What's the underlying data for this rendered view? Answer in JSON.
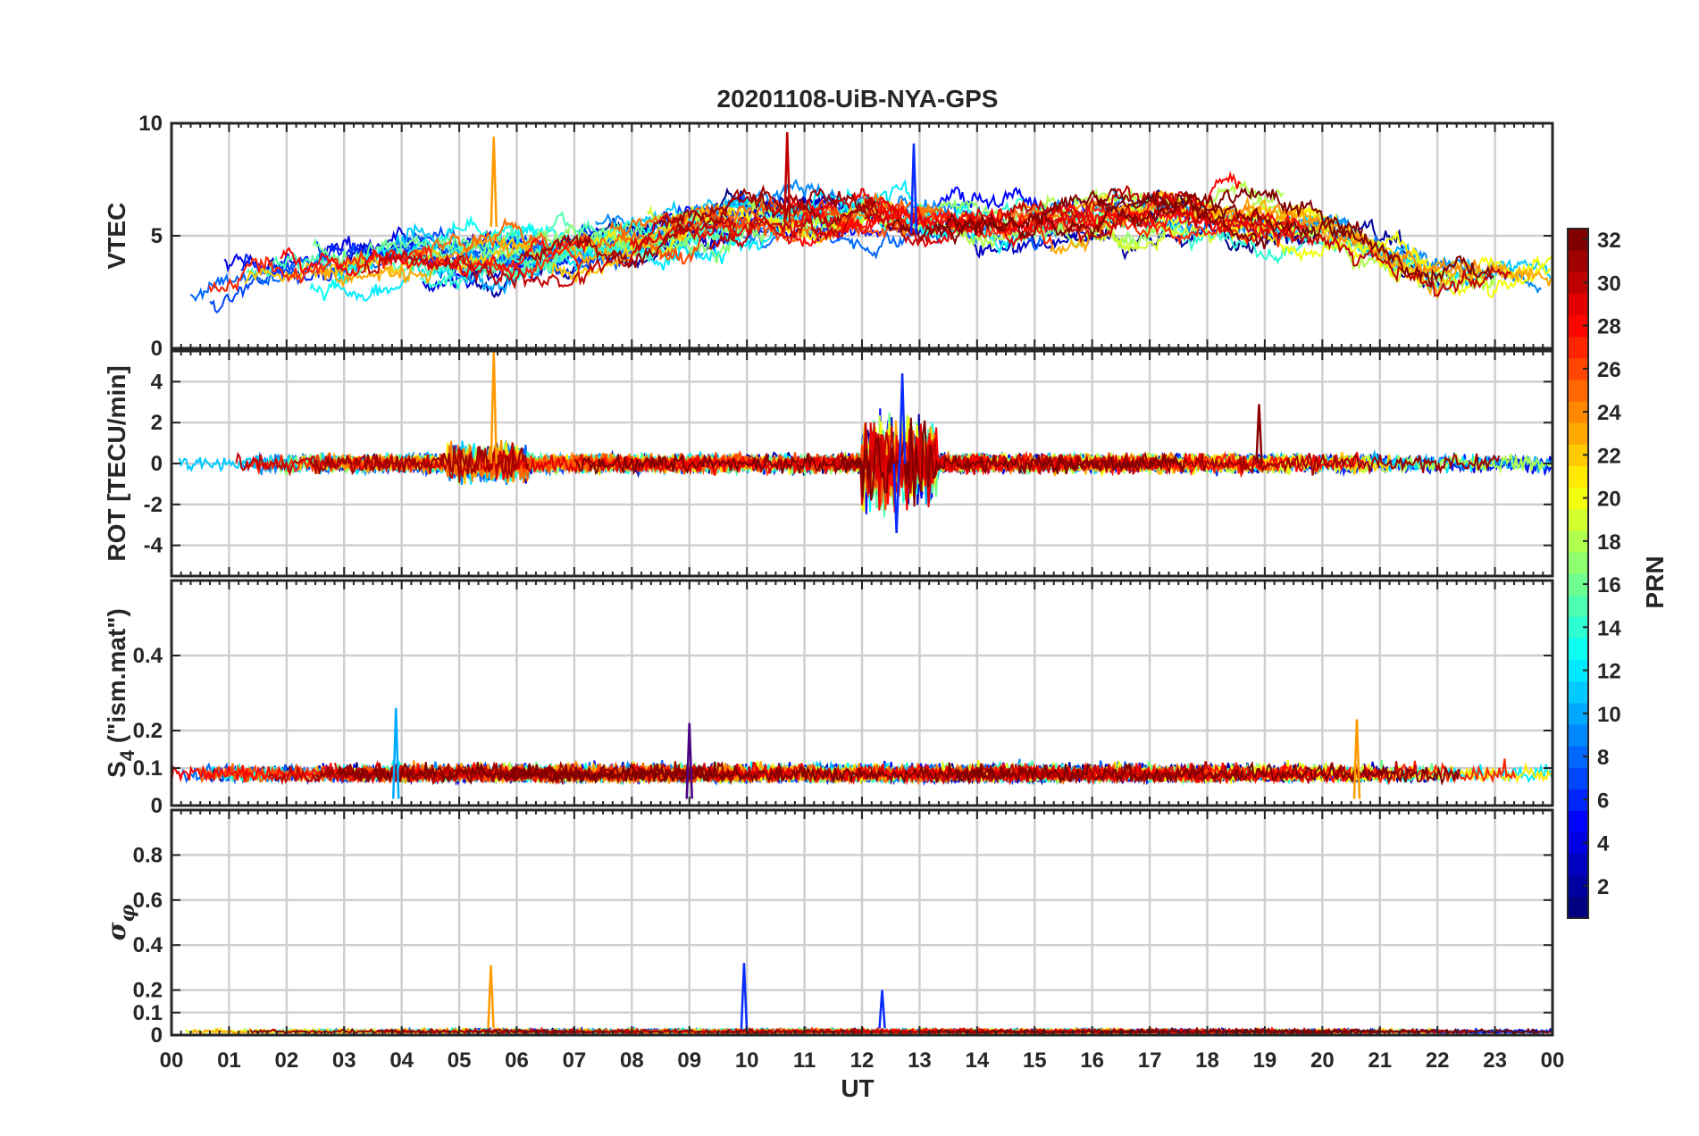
{
  "chart_data": {
    "type": "line",
    "title": "20201108-UiB-NYA-GPS",
    "xlabel": "UT",
    "x_ticks": [
      "00",
      "01",
      "02",
      "03",
      "04",
      "05",
      "06",
      "07",
      "08",
      "09",
      "10",
      "11",
      "12",
      "13",
      "14",
      "15",
      "16",
      "17",
      "18",
      "19",
      "20",
      "21",
      "22",
      "23",
      "00"
    ],
    "xlim": [
      0,
      24
    ],
    "panels": [
      {
        "ylabel": "VTEC",
        "ylim": [
          0,
          10
        ],
        "y_ticks": [
          0,
          5,
          10
        ],
        "y_tick_labels": [
          "0",
          "5",
          "10"
        ],
        "trend": {
          "t": [
            0,
            2,
            4,
            6,
            8,
            10,
            12,
            14,
            16,
            18,
            20,
            22,
            24
          ],
          "v": [
            3,
            3.5,
            4,
            4,
            4.7,
            5.8,
            6,
            5.6,
            5.8,
            6,
            5.4,
            3.2,
            3.2
          ]
        },
        "spikes": [
          {
            "t": 5.6,
            "v": 9.4,
            "color": "#ff9900"
          },
          {
            "t": 10.7,
            "v": 9.6,
            "color": "#c00000"
          },
          {
            "t": 12.9,
            "v": 9.1,
            "color": "#0a2cff"
          }
        ]
      },
      {
        "ylabel": "ROT [TECU/min]",
        "ylim": [
          -5.5,
          5.5
        ],
        "y_ticks": [
          -4,
          -2,
          0,
          2,
          4
        ],
        "y_tick_labels": [
          "-4",
          "-2",
          "0",
          "2",
          "4"
        ],
        "spikes": [
          {
            "t": 5.6,
            "v": 5.5,
            "color": "#ff9900"
          },
          {
            "t": 12.7,
            "v": 4.4,
            "color": "#0a2cff"
          },
          {
            "t": 12.6,
            "v": -3.4,
            "color": "#0a2cff"
          },
          {
            "t": 18.9,
            "v": 2.9,
            "color": "#8b0000"
          }
        ]
      },
      {
        "ylabel_main": "S",
        "ylabel_sub": "4",
        "ylabel_suffix": " (\"ism.mat\")",
        "ylim": [
          0,
          0.6
        ],
        "y_ticks": [
          0,
          0.1,
          0.2,
          0.4
        ],
        "y_tick_labels": [
          "0",
          "0.1",
          "0.2",
          "0.4"
        ],
        "spikes": [
          {
            "t": 3.9,
            "v": 0.26,
            "color": "#00aaff"
          },
          {
            "t": 9.0,
            "v": 0.22,
            "color": "#4a0080"
          },
          {
            "t": 20.6,
            "v": 0.23,
            "color": "#ff9900"
          }
        ]
      },
      {
        "ylabel_main": "σ",
        "ylabel_sub": "φ",
        "ylim": [
          0,
          1
        ],
        "y_ticks": [
          0,
          0.1,
          0.2,
          0.4,
          0.6,
          0.8
        ],
        "y_tick_labels": [
          "0",
          "0.1",
          "0.2",
          "0.4",
          "0.6",
          "0.8"
        ],
        "spikes": [
          {
            "t": 5.55,
            "v": 0.31,
            "color": "#ff9900"
          },
          {
            "t": 9.95,
            "v": 0.32,
            "color": "#0a2cff"
          },
          {
            "t": 12.35,
            "v": 0.2,
            "color": "#0a2cff"
          }
        ]
      }
    ],
    "series_count": 32,
    "colorbar": {
      "label": "PRN",
      "min": 1,
      "max": 32,
      "ticks": [
        2,
        4,
        6,
        8,
        10,
        12,
        14,
        16,
        18,
        20,
        22,
        24,
        26,
        28,
        30,
        32
      ],
      "tick_labels": [
        "2",
        "4",
        "6",
        "8",
        "10",
        "12",
        "14",
        "16",
        "18",
        "20",
        "22",
        "24",
        "26",
        "28",
        "30",
        "32"
      ],
      "colormap": "jet"
    }
  }
}
